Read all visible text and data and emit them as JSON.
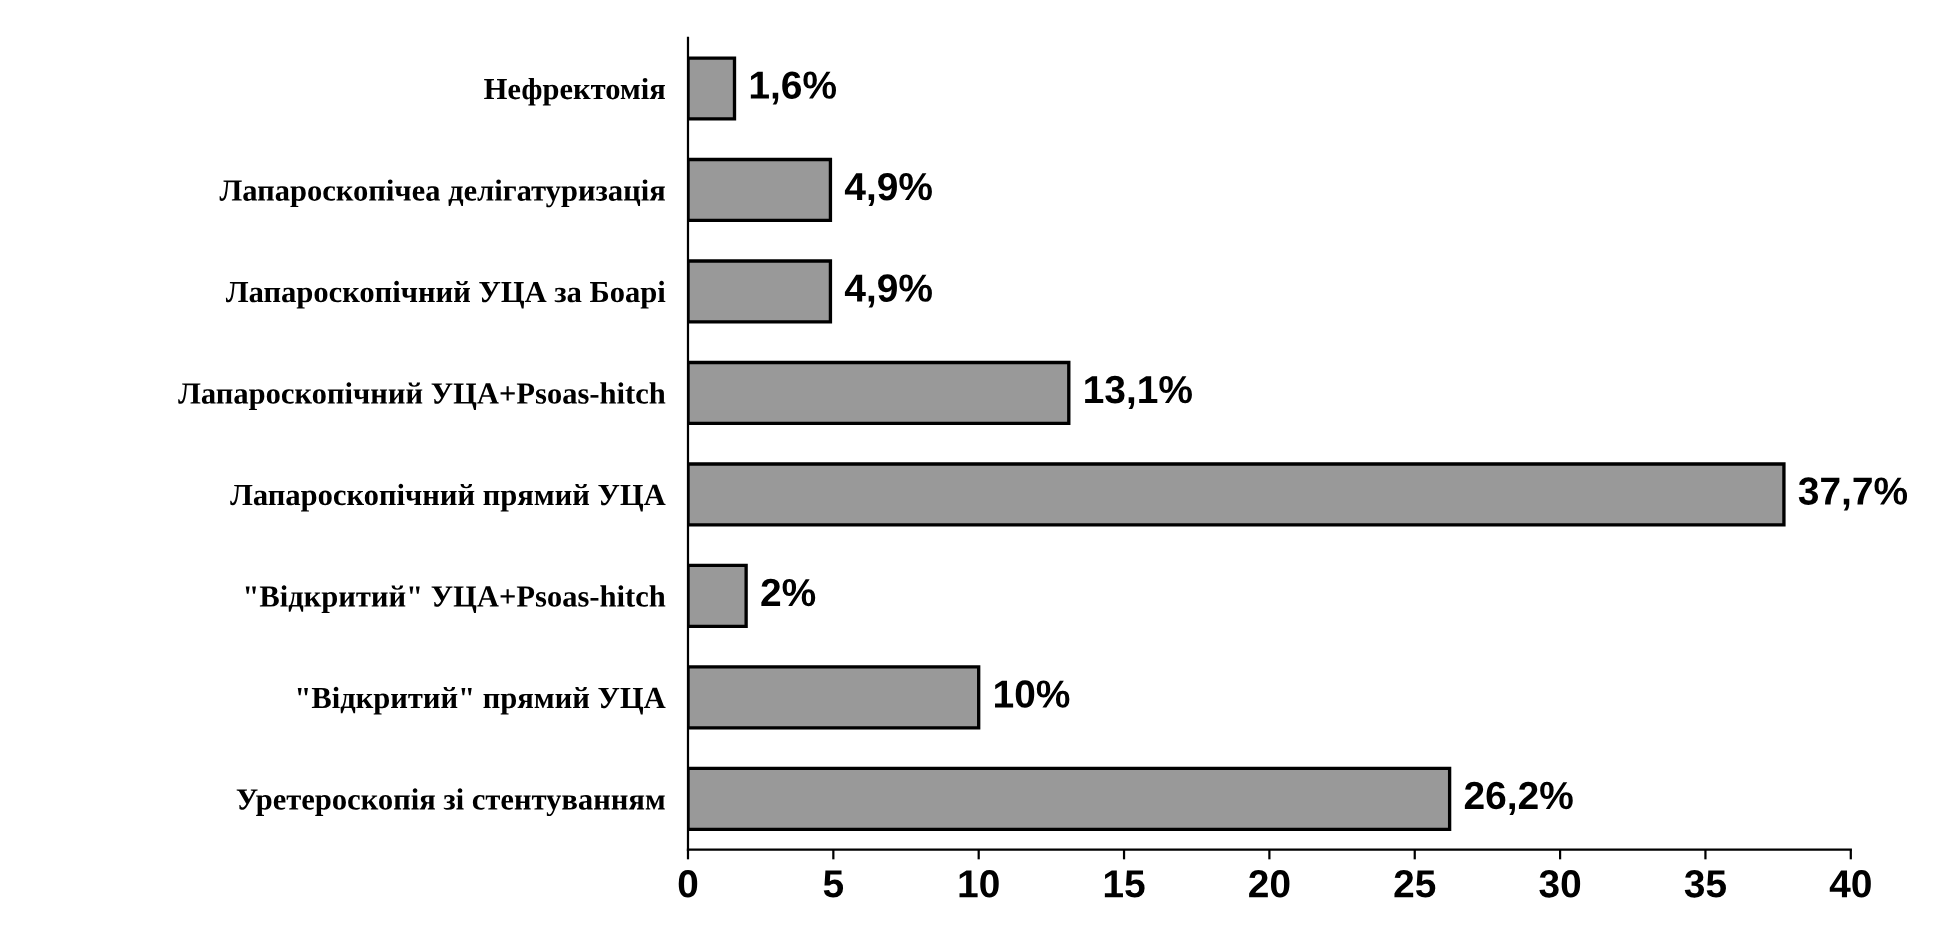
{
  "chart_data": {
    "type": "bar",
    "orientation": "horizontal",
    "categories": [
      "Нефректомія",
      "Лапароскопічеа делігатуризація",
      "Лапароскопічний УЦА за Боарі",
      "Лапароскопічний УЦА+Psoas-hitch",
      "Лапароскопічний прямий УЦА",
      "\"Відкритий\" УЦА+Psoas-hitch",
      "\"Відкритий\" прямий УЦА",
      "Уретероскопія зі стентуванням"
    ],
    "values": [
      1.6,
      4.9,
      4.9,
      13.1,
      37.7,
      2,
      10,
      26.2
    ],
    "value_labels": [
      "1,6%",
      "4,9%",
      "4,9%",
      "13,1%",
      "37,7%",
      "2%",
      "10%",
      "26,2%"
    ],
    "color": "#999999",
    "xlim": [
      0,
      40
    ],
    "xticks": [
      0,
      5,
      10,
      15,
      20,
      25,
      30,
      35,
      40
    ],
    "grid": false,
    "legend": false
  }
}
